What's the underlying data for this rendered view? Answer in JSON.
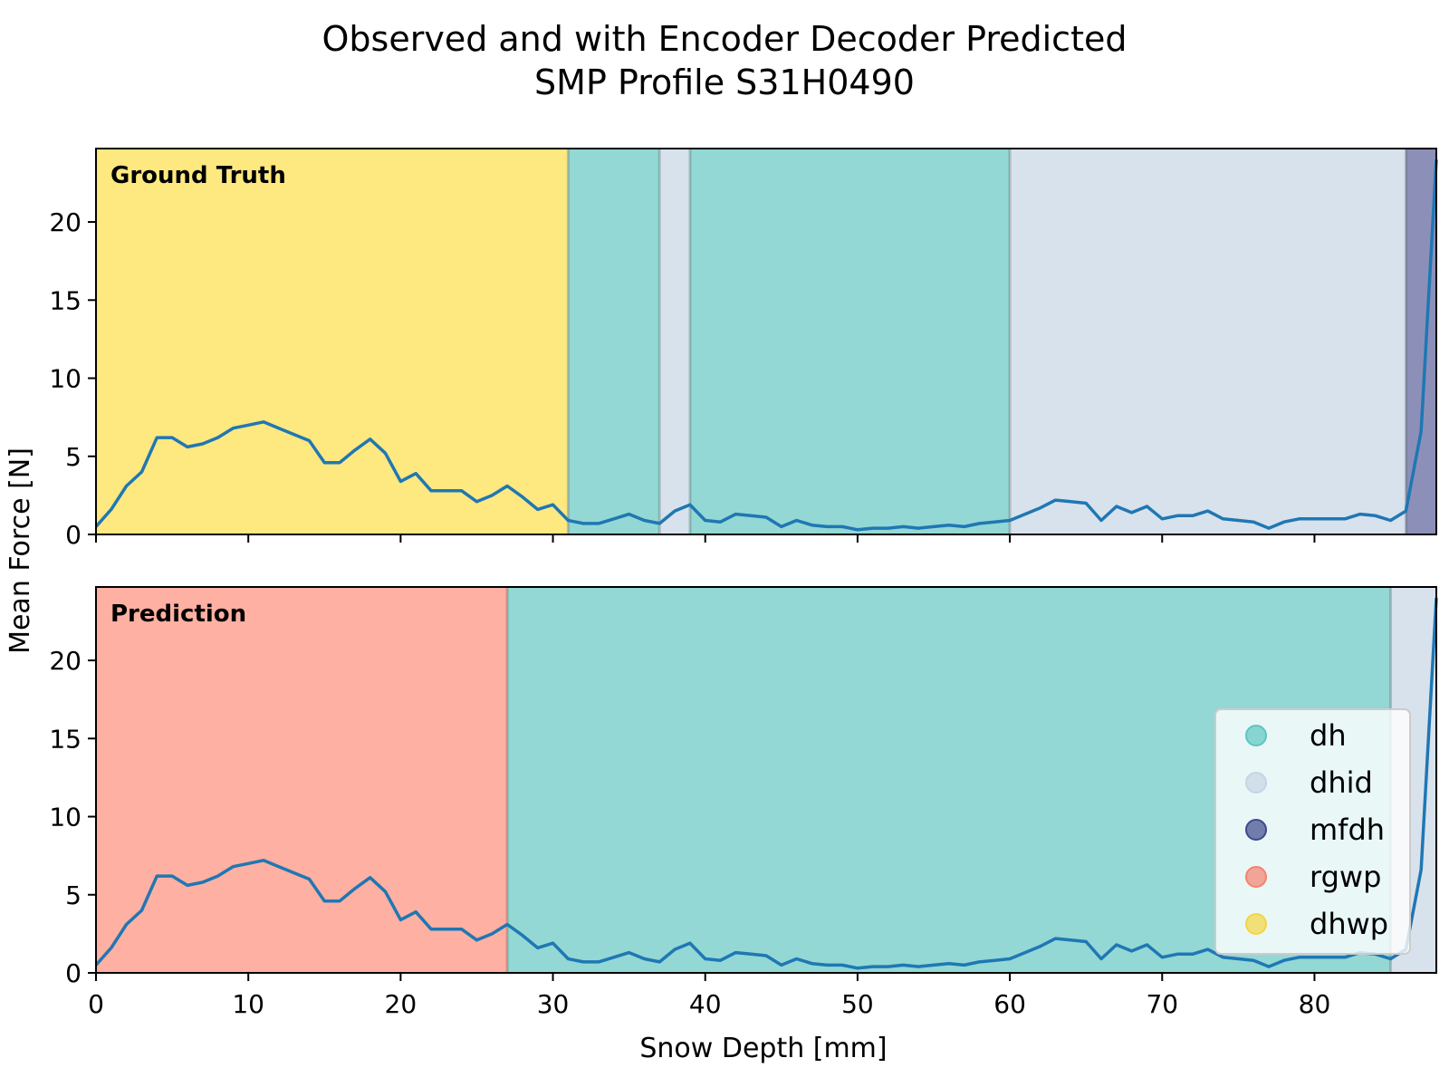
{
  "chart_data": {
    "type": "line",
    "title": [
      "Observed and with Encoder Decoder Predicted",
      "SMP Profile S31H0490"
    ],
    "xlabel": "Snow Depth [mm]",
    "ylabel": "Mean Force [N]",
    "xlim": [
      0,
      88
    ],
    "ylim": [
      0,
      24.7
    ],
    "xticks": [
      0,
      10,
      20,
      30,
      40,
      50,
      60,
      70,
      80
    ],
    "yticks": [
      0,
      5,
      10,
      15,
      20
    ],
    "grid": false,
    "legend_placement": "lower-right of bottom panel",
    "line_color": "#1f77b4",
    "series": [
      {
        "x": [
          0,
          1,
          2,
          3,
          4,
          5,
          6,
          7,
          8,
          9,
          10,
          11,
          12,
          13,
          14,
          15,
          16,
          17,
          18,
          19,
          20,
          21,
          22,
          23,
          24,
          25,
          26,
          27,
          28,
          29,
          30,
          31,
          32,
          33,
          34,
          35,
          36,
          37,
          38,
          39,
          40,
          41,
          42,
          43,
          44,
          45,
          46,
          47,
          48,
          49,
          50,
          51,
          52,
          53,
          54,
          55,
          56,
          57,
          58,
          59,
          60,
          61,
          62,
          63,
          64,
          65,
          66,
          67,
          68,
          69,
          70,
          71,
          72,
          73,
          74,
          75,
          76,
          77,
          78,
          79,
          80,
          81,
          82,
          83,
          84,
          85,
          86,
          87,
          88
        ],
        "values": [
          0.5,
          1.6,
          3.1,
          4.0,
          6.2,
          6.2,
          5.6,
          5.8,
          6.2,
          6.8,
          7.0,
          7.2,
          6.8,
          6.4,
          6.0,
          4.6,
          4.6,
          5.4,
          6.1,
          5.2,
          3.4,
          3.9,
          2.8,
          2.8,
          2.8,
          2.1,
          2.5,
          3.1,
          2.4,
          1.6,
          1.9,
          0.9,
          0.7,
          0.7,
          1.0,
          1.3,
          0.9,
          0.7,
          1.5,
          1.9,
          0.9,
          0.8,
          1.3,
          1.2,
          1.1,
          0.5,
          0.9,
          0.6,
          0.5,
          0.5,
          0.3,
          0.4,
          0.4,
          0.5,
          0.4,
          0.5,
          0.6,
          0.5,
          0.7,
          0.8,
          0.9,
          1.3,
          1.7,
          2.2,
          2.1,
          2.0,
          0.9,
          1.8,
          1.4,
          1.8,
          1.0,
          1.2,
          1.2,
          1.5,
          1.0,
          0.9,
          0.8,
          0.4,
          0.8,
          1.0,
          1.0,
          1.0,
          1.0,
          1.3,
          1.2,
          0.9,
          1.5,
          6.6,
          24.0
        ]
      }
    ],
    "legend": [
      {
        "label": "dh",
        "color": "#5cc6c0"
      },
      {
        "label": "dhid",
        "color": "#c6d4e5"
      },
      {
        "label": "mfdh",
        "color": "#3d4a8c"
      },
      {
        "label": "rgwp",
        "color": "#f4826e"
      },
      {
        "label": "dhwp",
        "color": "#f3d643"
      }
    ],
    "panels": [
      {
        "label": "Ground Truth",
        "segments": [
          {
            "class": "dhwp",
            "start": 0,
            "end": 31,
            "color": "#fee880"
          },
          {
            "class": "dh",
            "start": 31,
            "end": 37,
            "color": "#93d8d4"
          },
          {
            "class": "dhid",
            "start": 37,
            "end": 39,
            "color": "#d8e2ec"
          },
          {
            "class": "dh",
            "start": 39,
            "end": 60,
            "color": "#93d8d4"
          },
          {
            "class": "dhid",
            "start": 60,
            "end": 86,
            "color": "#d8e2ec"
          },
          {
            "class": "mfdh",
            "start": 86,
            "end": 88,
            "color": "#8c90b8"
          }
        ]
      },
      {
        "label": "Prediction",
        "segments": [
          {
            "class": "rgwp",
            "start": 0,
            "end": 27,
            "color": "#feb0a2"
          },
          {
            "class": "dh",
            "start": 27,
            "end": 85,
            "color": "#93d8d4"
          },
          {
            "class": "dhid",
            "start": 85,
            "end": 88,
            "color": "#d8e2ec"
          }
        ]
      }
    ]
  }
}
